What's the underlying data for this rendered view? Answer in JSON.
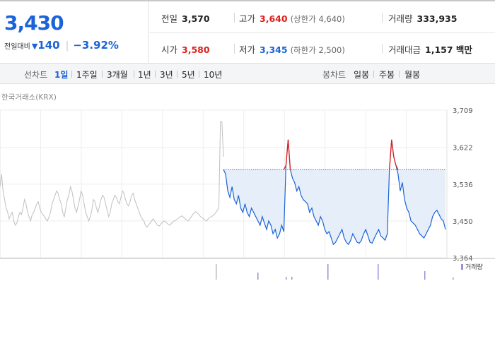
{
  "summary": {
    "price": "3,430",
    "change_label": "전일대비",
    "change_arrow": "▼",
    "change_amount": "140",
    "change_rate": "−3.92%",
    "prev_close_label": "전일",
    "prev_close": "3,570",
    "open_label": "시가",
    "open": "3,580",
    "high_label": "고가",
    "high": "3,640",
    "upper_limit_text": "(상한가 4,640)",
    "low_label": "저가",
    "low": "3,345",
    "lower_limit_text": "(하한가 2,500)",
    "volume_label": "거래량",
    "volume": "333,935",
    "value_label": "거래대금",
    "trade_value": "1,157 백만"
  },
  "line_tabs": {
    "label": "선차트",
    "items": [
      "1일",
      "1주일",
      "3개월",
      "1년",
      "3년",
      "5년",
      "10년"
    ],
    "active": 0
  },
  "candle_tabs": {
    "label": "봉차트",
    "items": [
      "일봉",
      "주봉",
      "월봉"
    ]
  },
  "colors": {
    "up": "#e0201a",
    "down": "#1b63d8",
    "accent": "#1b63d8",
    "prev_series": "#c0c0c0",
    "fill": "#e6eefa",
    "volume": "#9a8fd3"
  },
  "chart_data": {
    "type": "line",
    "source_label": "한국거래소(KRX)",
    "ylim": [
      3364,
      3709
    ],
    "y_ticks": [
      "3,709",
      "3,622",
      "3,536",
      "3,450",
      "3,364"
    ],
    "y_tick_values": [
      3709,
      3622,
      3536,
      3450,
      3364
    ],
    "x_positions": 46,
    "grid": true,
    "reference_line": 3570,
    "volume_legend": "거래량",
    "series": [
      {
        "role": "previous-session",
        "x": [
          0,
          1,
          2,
          3,
          4,
          5,
          6,
          7,
          8,
          9,
          10,
          11,
          12,
          13,
          14,
          15,
          16,
          17,
          18,
          19,
          20,
          21,
          22,
          23,
          24,
          25,
          26,
          27,
          28,
          29,
          30,
          31,
          32,
          33,
          34,
          35,
          36,
          37,
          38,
          39,
          40,
          41,
          42,
          43,
          44,
          45,
          46,
          47,
          48,
          49,
          50,
          51,
          52,
          53,
          54,
          55,
          56,
          57,
          58,
          59,
          60,
          61,
          62,
          63,
          64,
          65,
          66,
          67,
          68,
          69,
          70,
          71,
          72,
          73,
          74,
          75,
          76,
          77,
          78,
          79,
          80,
          81,
          82,
          83,
          84,
          85,
          86,
          87,
          88,
          89,
          90,
          91,
          92,
          93,
          94,
          95,
          96,
          97,
          98,
          99,
          100,
          101,
          102,
          103,
          104,
          105,
          106,
          107,
          108,
          109,
          110,
          111,
          112,
          113,
          114,
          115,
          116,
          117,
          118,
          119,
          120,
          121,
          122,
          123,
          124,
          125,
          126,
          127,
          128,
          129,
          130,
          131,
          132,
          133,
          134,
          135,
          136,
          137,
          138,
          139,
          140,
          141,
          142,
          143,
          144,
          145,
          146,
          147,
          148,
          149,
          150,
          151,
          152,
          153,
          154,
          155,
          156,
          157,
          158,
          159,
          160,
          161,
          162,
          163,
          164,
          165,
          166,
          167,
          168,
          169,
          170,
          171,
          172,
          173,
          174,
          175,
          176,
          177,
          178,
          179,
          180,
          181,
          182,
          183,
          184,
          185,
          186,
          187,
          188,
          189,
          190,
          191,
          192,
          193,
          194,
          195,
          196,
          197,
          198,
          199,
          200,
          201,
          202,
          203,
          204,
          205,
          206,
          207,
          208,
          209,
          210
        ],
        "values": [
          3530,
          3560,
          3520,
          3500,
          3480,
          3470,
          3455,
          3465,
          3470,
          3450,
          3440,
          3445,
          3460,
          3470,
          3465,
          3480,
          3500,
          3490,
          3470,
          3460,
          3450,
          3465,
          3470,
          3480,
          3490,
          3495,
          3480,
          3470,
          3465,
          3460,
          3455,
          3450,
          3460,
          3470,
          3490,
          3500,
          3510,
          3520,
          3515,
          3500,
          3490,
          3470,
          3460,
          3480,
          3500,
          3510,
          3530,
          3520,
          3500,
          3480,
          3470,
          3485,
          3500,
          3520,
          3510,
          3490,
          3470,
          3460,
          3450,
          3460,
          3475,
          3500,
          3495,
          3480,
          3470,
          3485,
          3500,
          3510,
          3505,
          3490,
          3475,
          3460,
          3470,
          3490,
          3500,
          3510,
          3505,
          3495,
          3490,
          3505,
          3520,
          3515,
          3500,
          3490,
          3485,
          3495,
          3510,
          3515,
          3500,
          3490,
          3480,
          3470,
          3460,
          3455,
          3450,
          3440,
          3435,
          3440,
          3445,
          3450,
          3455,
          3450,
          3445,
          3440,
          3438,
          3442,
          3446,
          3450,
          3448,
          3445,
          3442,
          3440,
          3444,
          3448,
          3450,
          3452,
          3455,
          3458,
          3460,
          3462,
          3458,
          3455,
          3452,
          3450,
          3455,
          3460,
          3465,
          3470,
          3472,
          3468,
          3465,
          3460,
          3458,
          3455,
          3452,
          3450,
          3455,
          3458,
          3460,
          3462,
          3465,
          3470,
          3475,
          3480,
          3682,
          3682,
          3600,
          3570,
          3570,
          3570,
          3570,
          3570,
          3570,
          3570,
          3570,
          3570,
          3570,
          3570,
          3570,
          3570,
          3570,
          3570,
          3570,
          3570,
          3570,
          3570,
          3570,
          3570,
          3570,
          3570,
          3570,
          3570,
          3570,
          3570,
          3570,
          3570,
          3570,
          3570,
          3570,
          3570,
          3570,
          3570,
          3570,
          3570,
          3570,
          3570,
          3570,
          3570,
          3570,
          3570,
          3570,
          3570,
          3570,
          3570,
          3570,
          3570,
          3570,
          3570,
          3570,
          3570,
          3570,
          3570,
          3570,
          3570,
          3570,
          3570,
          3570,
          3570,
          3570,
          3570,
          3570
        ]
      },
      {
        "role": "today",
        "x": [
          0,
          1,
          2,
          3,
          4,
          5,
          6,
          7,
          8,
          9,
          10,
          11,
          12,
          13,
          14,
          15,
          16,
          17,
          18,
          19,
          20,
          21,
          22,
          23,
          24,
          25,
          26,
          27,
          28,
          29,
          30,
          31,
          32,
          33,
          34,
          35,
          36,
          37,
          38,
          39,
          40,
          41,
          42,
          43,
          44,
          45,
          46,
          47,
          48,
          49,
          50,
          51,
          52,
          53,
          54,
          55,
          56,
          57,
          58,
          59,
          60,
          61,
          62,
          63,
          64,
          65,
          66,
          67,
          68,
          69,
          70,
          71,
          72,
          73,
          74,
          75,
          76,
          77,
          78,
          79,
          80,
          81,
          82,
          83,
          84,
          85,
          86,
          87,
          88,
          89,
          90,
          91,
          92,
          93,
          94,
          95,
          96,
          97,
          98,
          99,
          100,
          101,
          102,
          103
        ],
        "values": [
          3570,
          3560,
          3520,
          3505,
          3530,
          3500,
          3490,
          3510,
          3480,
          3470,
          3490,
          3470,
          3460,
          3480,
          3470,
          3460,
          3450,
          3440,
          3460,
          3445,
          3430,
          3450,
          3440,
          3420,
          3430,
          3410,
          3420,
          3440,
          3425,
          3580,
          3640,
          3570,
          3550,
          3540,
          3520,
          3530,
          3510,
          3500,
          3495,
          3490,
          3470,
          3480,
          3460,
          3450,
          3440,
          3460,
          3450,
          3430,
          3420,
          3425,
          3410,
          3395,
          3400,
          3410,
          3420,
          3430,
          3410,
          3400,
          3395,
          3405,
          3420,
          3410,
          3400,
          3398,
          3405,
          3420,
          3430,
          3415,
          3400,
          3398,
          3410,
          3420,
          3430,
          3415,
          3410,
          3405,
          3420,
          3570,
          3640,
          3600,
          3580,
          3560,
          3520,
          3540,
          3500,
          3480,
          3470,
          3450,
          3445,
          3440,
          3430,
          3420,
          3415,
          3410,
          3420,
          3430,
          3440,
          3460,
          3470,
          3475,
          3465,
          3455,
          3450,
          3430
        ]
      }
    ]
  }
}
